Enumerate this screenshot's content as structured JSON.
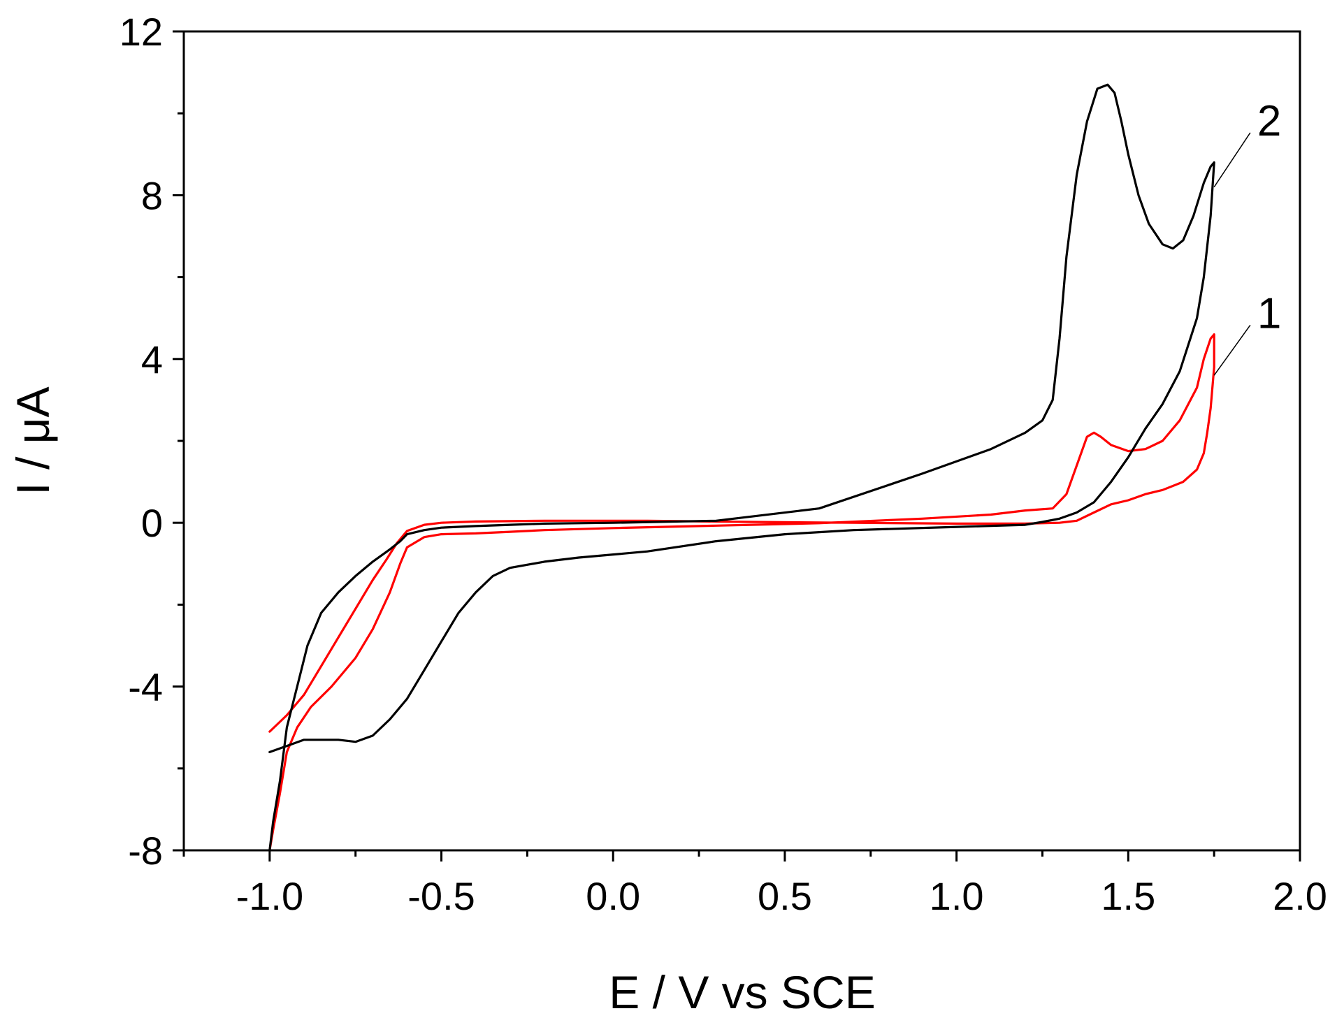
{
  "chart_data": {
    "type": "line",
    "title": "",
    "xlabel": "E / V vs SCE",
    "ylabel": "I / μA",
    "xlim": [
      -1.25,
      2.0
    ],
    "ylim": [
      -8,
      12
    ],
    "x_ticks": [
      -1.0,
      -0.5,
      0.0,
      0.5,
      1.0,
      1.5,
      2.0
    ],
    "x_tick_labels": [
      "-1.0",
      "-0.5",
      "0.0",
      "0.5",
      "1.0",
      "1.5",
      "2.0"
    ],
    "y_ticks": [
      -8,
      -4,
      0,
      4,
      8,
      12
    ],
    "y_tick_labels": [
      "-8",
      "-4",
      "0",
      "4",
      "8",
      "12"
    ],
    "grid": false,
    "series": [
      {
        "name": "1",
        "color": "#ff0000",
        "label_text": "1",
        "label_at": [
          1.9,
          5.1
        ],
        "leader_from": [
          1.75,
          3.6
        ],
        "x": [
          -1.0,
          -0.99,
          -0.97,
          -0.95,
          -0.92,
          -0.88,
          -0.82,
          -0.75,
          -0.7,
          -0.65,
          -0.62,
          -0.6,
          -0.55,
          -0.5,
          -0.4,
          -0.3,
          -0.2,
          0.0,
          0.3,
          0.6,
          0.9,
          1.1,
          1.2,
          1.28,
          1.32,
          1.35,
          1.38,
          1.4,
          1.42,
          1.45,
          1.5,
          1.55,
          1.6,
          1.65,
          1.7,
          1.72,
          1.74,
          1.75,
          1.75,
          1.74,
          1.73,
          1.72,
          1.7,
          1.66,
          1.6,
          1.55,
          1.5,
          1.45,
          1.4,
          1.35,
          1.3,
          1.2,
          1.0,
          0.7,
          0.4,
          0.1,
          -0.2,
          -0.4,
          -0.5,
          -0.55,
          -0.6,
          -0.63,
          -0.66,
          -0.7,
          -0.75,
          -0.8,
          -0.85,
          -0.9,
          -0.95,
          -1.0
        ],
        "y": [
          -8.0,
          -7.5,
          -6.6,
          -5.6,
          -5.0,
          -4.5,
          -4.0,
          -3.3,
          -2.6,
          -1.7,
          -1.0,
          -0.6,
          -0.35,
          -0.28,
          -0.26,
          -0.22,
          -0.18,
          -0.13,
          -0.07,
          -0.01,
          0.1,
          0.2,
          0.3,
          0.35,
          0.7,
          1.4,
          2.1,
          2.2,
          2.1,
          1.9,
          1.75,
          1.8,
          2.0,
          2.5,
          3.3,
          4.0,
          4.5,
          4.6,
          3.8,
          2.8,
          2.2,
          1.7,
          1.3,
          1.0,
          0.8,
          0.7,
          0.55,
          0.45,
          0.25,
          0.05,
          0.0,
          -0.02,
          -0.02,
          0.0,
          0.02,
          0.05,
          0.05,
          0.03,
          0.0,
          -0.05,
          -0.2,
          -0.5,
          -0.9,
          -1.4,
          -2.1,
          -2.8,
          -3.5,
          -4.2,
          -4.7,
          -5.1
        ]
      },
      {
        "name": "2",
        "color": "#000000",
        "label_text": "2",
        "label_at": [
          1.9,
          9.8
        ],
        "leader_from": [
          1.75,
          8.2
        ],
        "x": [
          -1.0,
          -0.99,
          -0.97,
          -0.95,
          -0.92,
          -0.89,
          -0.85,
          -0.8,
          -0.75,
          -0.7,
          -0.65,
          -0.62,
          -0.6,
          -0.55,
          -0.5,
          -0.4,
          -0.3,
          -0.2,
          0.0,
          0.3,
          0.6,
          0.9,
          1.1,
          1.2,
          1.25,
          1.28,
          1.3,
          1.32,
          1.35,
          1.38,
          1.41,
          1.44,
          1.46,
          1.48,
          1.5,
          1.53,
          1.56,
          1.6,
          1.63,
          1.66,
          1.69,
          1.72,
          1.74,
          1.75,
          1.74,
          1.72,
          1.7,
          1.65,
          1.6,
          1.55,
          1.5,
          1.45,
          1.4,
          1.35,
          1.3,
          1.25,
          1.2,
          1.0,
          0.7,
          0.5,
          0.3,
          0.1,
          -0.1,
          -0.2,
          -0.3,
          -0.35,
          -0.4,
          -0.45,
          -0.5,
          -0.55,
          -0.6,
          -0.65,
          -0.7,
          -0.75,
          -0.8,
          -0.85,
          -0.9,
          -0.95,
          -1.0
        ],
        "y": [
          -8.0,
          -7.3,
          -6.3,
          -5.0,
          -4.0,
          -3.0,
          -2.2,
          -1.7,
          -1.3,
          -0.95,
          -0.65,
          -0.45,
          -0.28,
          -0.18,
          -0.12,
          -0.08,
          -0.05,
          -0.02,
          0.0,
          0.05,
          0.35,
          1.2,
          1.8,
          2.2,
          2.5,
          3.0,
          4.5,
          6.5,
          8.5,
          9.8,
          10.6,
          10.7,
          10.5,
          9.8,
          9.0,
          8.0,
          7.3,
          6.8,
          6.7,
          6.9,
          7.5,
          8.3,
          8.7,
          8.8,
          7.5,
          6.0,
          5.0,
          3.7,
          2.9,
          2.3,
          1.6,
          1.0,
          0.5,
          0.25,
          0.1,
          0.02,
          -0.05,
          -0.1,
          -0.18,
          -0.28,
          -0.45,
          -0.7,
          -0.85,
          -0.95,
          -1.1,
          -1.3,
          -1.7,
          -2.2,
          -2.9,
          -3.6,
          -4.3,
          -4.8,
          -5.2,
          -5.35,
          -5.3,
          -5.3,
          -5.3,
          -5.45,
          -5.6
        ]
      }
    ]
  }
}
